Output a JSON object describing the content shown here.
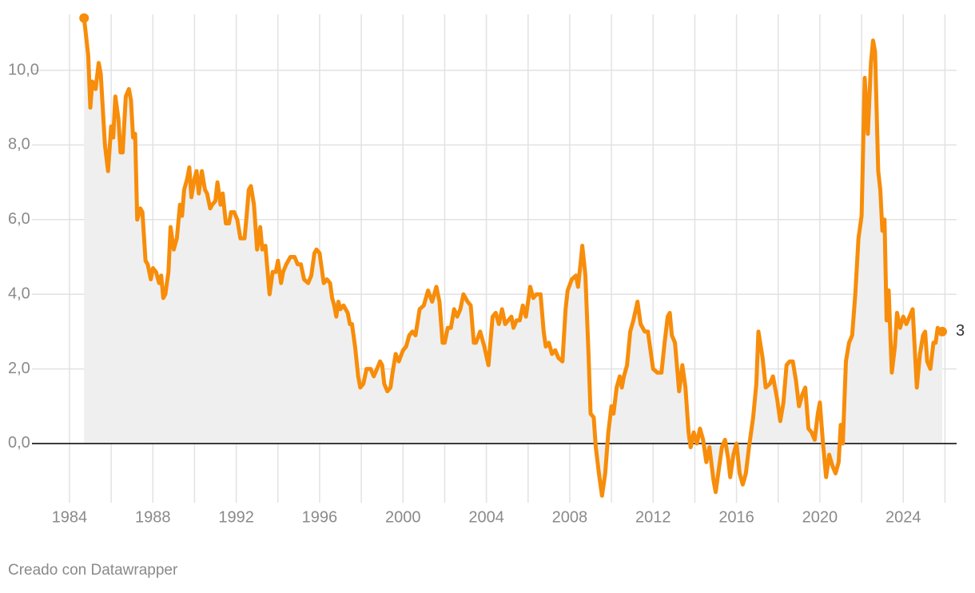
{
  "chart_data": {
    "type": "area-line",
    "color": "#f78d0a",
    "area_color": "#efefef",
    "x": [
      1984.7,
      1984.9,
      1985.0,
      1985.1,
      1985.25,
      1985.4,
      1985.5,
      1985.7,
      1985.85,
      1986.0,
      1986.1,
      1986.2,
      1986.35,
      1986.45,
      1986.55,
      1986.7,
      1986.85,
      1986.95,
      1987.05,
      1987.15,
      1987.25,
      1987.4,
      1987.5,
      1987.65,
      1987.75,
      1987.9,
      1988.0,
      1988.15,
      1988.3,
      1988.4,
      1988.5,
      1988.6,
      1988.75,
      1988.85,
      1989.0,
      1989.15,
      1989.3,
      1989.4,
      1989.5,
      1989.65,
      1989.75,
      1989.85,
      1990.0,
      1990.1,
      1990.2,
      1990.35,
      1990.5,
      1990.6,
      1990.75,
      1990.85,
      1991.0,
      1991.1,
      1991.25,
      1991.35,
      1991.5,
      1991.65,
      1991.75,
      1991.9,
      1992.05,
      1992.2,
      1992.4,
      1992.5,
      1992.6,
      1992.7,
      1992.85,
      1993.0,
      1993.15,
      1993.25,
      1993.4,
      1993.6,
      1993.75,
      1993.9,
      1994.0,
      1994.15,
      1994.25,
      1994.4,
      1994.6,
      1994.8,
      1994.95,
      1995.1,
      1995.25,
      1995.45,
      1995.6,
      1995.75,
      1995.85,
      1996.0,
      1996.2,
      1996.35,
      1996.5,
      1996.6,
      1996.7,
      1996.8,
      1996.9,
      1997.0,
      1997.15,
      1997.35,
      1997.45,
      1997.55,
      1997.7,
      1997.85,
      1997.95,
      1998.1,
      1998.25,
      1998.45,
      1998.6,
      1998.75,
      1998.9,
      1999.0,
      1999.1,
      1999.25,
      1999.4,
      1999.5,
      1999.65,
      1999.8,
      2000.0,
      2000.15,
      2000.3,
      2000.45,
      2000.6,
      2000.8,
      2001.0,
      2001.2,
      2001.4,
      2001.6,
      2001.75,
      2001.9,
      2002.0,
      2002.15,
      2002.3,
      2002.45,
      2002.6,
      2002.75,
      2002.9,
      2003.1,
      2003.25,
      2003.4,
      2003.5,
      2003.7,
      2003.9,
      2004.1,
      2004.3,
      2004.45,
      2004.6,
      2004.75,
      2004.9,
      2005.05,
      2005.2,
      2005.3,
      2005.45,
      2005.6,
      2005.75,
      2005.9,
      2006.0,
      2006.1,
      2006.25,
      2006.4,
      2006.6,
      2006.75,
      2006.85,
      2007.0,
      2007.15,
      2007.3,
      2007.45,
      2007.65,
      2007.8,
      2007.9,
      2008.1,
      2008.3,
      2008.4,
      2008.55,
      2008.6,
      2008.75,
      2008.9,
      2009.0,
      2009.15,
      2009.25,
      2009.4,
      2009.55,
      2009.7,
      2009.85,
      2010.0,
      2010.1,
      2010.25,
      2010.4,
      2010.5,
      2010.6,
      2010.75,
      2010.9,
      2011.05,
      2011.25,
      2011.4,
      2011.6,
      2011.75,
      2011.9,
      2012.0,
      2012.2,
      2012.4,
      2012.55,
      2012.7,
      2012.8,
      2012.9,
      2013.05,
      2013.25,
      2013.4,
      2013.55,
      2013.7,
      2013.8,
      2013.95,
      2014.1,
      2014.25,
      2014.4,
      2014.55,
      2014.7,
      2014.9,
      2015.0,
      2015.15,
      2015.3,
      2015.45,
      2015.6,
      2015.7,
      2015.85,
      2016.0,
      2016.15,
      2016.3,
      2016.45,
      2016.6,
      2016.8,
      2016.95,
      2017.05,
      2017.25,
      2017.4,
      2017.6,
      2017.75,
      2017.95,
      2018.1,
      2018.25,
      2018.4,
      2018.55,
      2018.7,
      2018.85,
      2019.0,
      2019.15,
      2019.3,
      2019.45,
      2019.6,
      2019.75,
      2019.9,
      2020.0,
      2020.15,
      2020.3,
      2020.45,
      2020.6,
      2020.75,
      2020.9,
      2021.0,
      2021.1,
      2021.25,
      2021.4,
      2021.55,
      2021.7,
      2021.85,
      2022.0,
      2022.15,
      2022.3,
      2022.45,
      2022.55,
      2022.65,
      2022.8,
      2022.9,
      2023.0,
      2023.1,
      2023.2,
      2023.3,
      2023.45,
      2023.6,
      2023.7,
      2023.85,
      2024.0,
      2024.15,
      2024.3,
      2024.45,
      2024.65,
      2024.8,
      2024.95,
      2025.05,
      2025.15,
      2025.3,
      2025.45,
      2025.55,
      2025.65,
      2025.75,
      2025.87
    ],
    "values": [
      11.4,
      10.4,
      9.0,
      9.7,
      9.5,
      10.2,
      9.9,
      8.0,
      7.3,
      8.5,
      8.2,
      9.3,
      8.7,
      7.8,
      7.8,
      9.3,
      9.5,
      9.2,
      8.2,
      8.3,
      6.0,
      6.3,
      6.2,
      4.9,
      4.8,
      4.4,
      4.7,
      4.6,
      4.3,
      4.5,
      3.9,
      4.0,
      4.6,
      5.8,
      5.2,
      5.5,
      6.4,
      6.1,
      6.8,
      7.1,
      7.4,
      6.6,
      7.1,
      7.3,
      6.7,
      7.3,
      6.8,
      6.7,
      6.3,
      6.4,
      6.5,
      7.0,
      6.4,
      6.7,
      5.9,
      5.9,
      6.2,
      6.2,
      6.0,
      5.5,
      5.5,
      6.1,
      6.8,
      6.9,
      6.4,
      5.2,
      5.8,
      5.2,
      5.3,
      4.0,
      4.6,
      4.6,
      4.9,
      4.3,
      4.6,
      4.8,
      5.0,
      5.0,
      4.8,
      4.8,
      4.4,
      4.3,
      4.5,
      5.1,
      5.2,
      5.1,
      4.3,
      4.4,
      4.3,
      3.9,
      3.7,
      3.4,
      3.8,
      3.6,
      3.7,
      3.5,
      3.2,
      3.2,
      2.6,
      1.8,
      1.5,
      1.6,
      2.0,
      2.0,
      1.8,
      2.0,
      2.2,
      2.1,
      1.6,
      1.4,
      1.5,
      1.9,
      2.4,
      2.2,
      2.5,
      2.6,
      2.9,
      3.0,
      2.9,
      3.6,
      3.7,
      4.1,
      3.8,
      4.2,
      3.8,
      2.7,
      2.7,
      3.1,
      3.1,
      3.6,
      3.4,
      3.6,
      4.0,
      3.8,
      3.7,
      2.7,
      2.7,
      3.0,
      2.6,
      2.1,
      3.4,
      3.5,
      3.2,
      3.6,
      3.2,
      3.3,
      3.4,
      3.1,
      3.3,
      3.3,
      3.7,
      3.4,
      3.8,
      4.2,
      3.9,
      4.0,
      4.0,
      3.0,
      2.6,
      2.7,
      2.4,
      2.5,
      2.3,
      2.2,
      3.6,
      4.1,
      4.4,
      4.5,
      4.2,
      5.0,
      5.3,
      4.5,
      2.4,
      0.8,
      0.7,
      -0.1,
      -0.8,
      -1.4,
      -0.8,
      0.3,
      1.0,
      0.8,
      1.5,
      1.8,
      1.5,
      1.8,
      2.1,
      3.0,
      3.3,
      3.8,
      3.2,
      3.0,
      3.0,
      2.4,
      2.0,
      1.9,
      1.9,
      2.7,
      3.4,
      3.5,
      2.9,
      2.7,
      1.4,
      2.1,
      1.5,
      0.3,
      -0.1,
      0.3,
      0.0,
      0.4,
      0.1,
      -0.5,
      -0.1,
      -1.0,
      -1.3,
      -0.7,
      -0.1,
      0.1,
      -0.4,
      -0.9,
      -0.3,
      0.0,
      -0.8,
      -1.1,
      -0.8,
      -0.1,
      0.7,
      1.6,
      3.0,
      2.3,
      1.5,
      1.6,
      1.8,
      1.2,
      0.6,
      1.1,
      2.1,
      2.2,
      2.2,
      1.7,
      1.0,
      1.3,
      1.5,
      0.4,
      0.3,
      0.1,
      0.8,
      1.1,
      0.0,
      -0.9,
      -0.3,
      -0.6,
      -0.8,
      -0.5,
      0.5,
      0.0,
      2.2,
      2.7,
      2.9,
      4.0,
      5.5,
      6.1,
      9.8,
      8.3,
      10.2,
      10.8,
      10.5,
      7.3,
      6.8,
      5.7,
      6.0,
      3.3,
      4.1,
      1.9,
      2.6,
      3.5,
      3.1,
      3.4,
      3.2,
      3.4,
      3.6,
      1.5,
      2.4,
      2.9,
      3.0,
      2.2,
      2.0,
      2.7,
      2.7,
      3.1,
      3.0,
      3
    ],
    "xlim": [
      1982.2,
      2026.56
    ],
    "ylim": [
      -1.5,
      11.5
    ],
    "xticks": [
      1984,
      1988,
      1992,
      1996,
      2000,
      2004,
      2008,
      2012,
      2016,
      2020,
      2024
    ],
    "xgrid": [
      1984,
      1986,
      1988,
      1990,
      1992,
      1994,
      1996,
      1998,
      2000,
      2002,
      2004,
      2006,
      2008,
      2010,
      2012,
      2014,
      2016,
      2018,
      2020,
      2022,
      2024,
      2026
    ],
    "yticks": [
      {
        "value": 0,
        "label": "0,0"
      },
      {
        "value": 2,
        "label": "2,0"
      },
      {
        "value": 4,
        "label": "4,0"
      },
      {
        "value": 6,
        "label": "6,0"
      },
      {
        "value": 8,
        "label": "8,0"
      },
      {
        "value": 10,
        "label": "10,0"
      }
    ],
    "footer": "Creado con Datawrapper"
  }
}
